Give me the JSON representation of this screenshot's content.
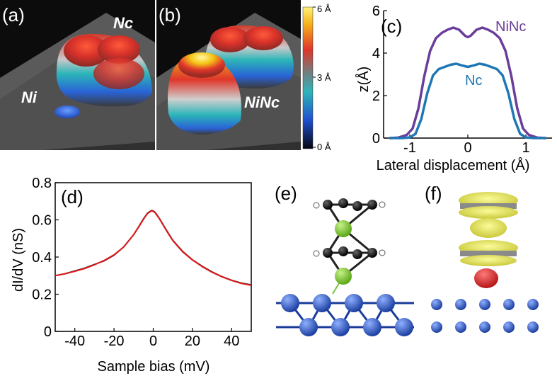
{
  "panels": {
    "a": {
      "label": "(a)",
      "annotations": [
        "Nc",
        "Ni"
      ]
    },
    "b": {
      "label": "(b)",
      "annotations": [
        "NiNc"
      ]
    },
    "colorbar": {
      "ticks": [
        "6 Å",
        "3 Å",
        "0 Å"
      ],
      "values": [
        6,
        3,
        0
      ]
    },
    "e": {
      "label": "(e)"
    },
    "f": {
      "label": "(f)"
    }
  },
  "chart_data": [
    {
      "id": "c",
      "type": "line",
      "panel_label": "(c)",
      "xlabel": "Lateral displacement (Å)",
      "ylabel": "z(Å)",
      "xlim": [
        -1.45,
        1.45
      ],
      "ylim": [
        0,
        6
      ],
      "xticks": [
        -1,
        0,
        1
      ],
      "yticks": [
        0,
        2,
        4,
        6
      ],
      "series": [
        {
          "name": "NiNc",
          "color": "#6a3d9a",
          "x": [
            -1.35,
            -1.2,
            -1.05,
            -0.95,
            -0.85,
            -0.75,
            -0.65,
            -0.55,
            -0.45,
            -0.35,
            -0.25,
            -0.15,
            -0.05,
            0.0,
            0.05,
            0.15,
            0.25,
            0.35,
            0.45,
            0.55,
            0.65,
            0.75,
            0.85,
            0.95,
            1.05,
            1.2,
            1.35
          ],
          "y": [
            0.0,
            0.02,
            0.15,
            0.45,
            1.4,
            2.9,
            4.1,
            4.7,
            4.95,
            5.1,
            5.2,
            5.1,
            4.82,
            4.75,
            4.82,
            5.1,
            5.2,
            5.1,
            4.95,
            4.7,
            4.1,
            2.9,
            1.4,
            0.45,
            0.15,
            0.02,
            0.0
          ]
        },
        {
          "name": "Nc",
          "color": "#1f78b4",
          "x": [
            -1.35,
            -1.15,
            -1.0,
            -0.9,
            -0.8,
            -0.7,
            -0.6,
            -0.5,
            -0.4,
            -0.3,
            -0.2,
            -0.1,
            0.0,
            0.1,
            0.2,
            0.3,
            0.4,
            0.5,
            0.6,
            0.7,
            0.8,
            0.9,
            1.0,
            1.15,
            1.35
          ],
          "y": [
            0.0,
            0.0,
            0.03,
            0.2,
            0.9,
            2.1,
            2.95,
            3.25,
            3.35,
            3.45,
            3.5,
            3.42,
            3.35,
            3.42,
            3.5,
            3.45,
            3.35,
            3.25,
            2.95,
            2.1,
            0.9,
            0.2,
            0.03,
            0.0,
            0.0
          ]
        }
      ]
    },
    {
      "id": "d",
      "type": "line",
      "panel_label": "(d)",
      "xlabel": "Sample bias (mV)",
      "ylabel": "dI/dV (nS)",
      "xlim": [
        -50,
        50
      ],
      "ylim": [
        0,
        0.8
      ],
      "xticks": [
        -40,
        -20,
        0,
        20,
        40
      ],
      "yticks": [
        0,
        0.2,
        0.4,
        0.6,
        0.8
      ],
      "series": [
        {
          "name": "",
          "color": "#111111",
          "x": [
            -50,
            -45,
            -40,
            -35,
            -30,
            -25,
            -20,
            -15,
            -10,
            -7,
            -5,
            -3,
            -1,
            0,
            1,
            3,
            5,
            7,
            10,
            15,
            20,
            25,
            30,
            35,
            40,
            45,
            50
          ],
          "y": [
            0.3,
            0.31,
            0.325,
            0.34,
            0.36,
            0.38,
            0.41,
            0.455,
            0.52,
            0.57,
            0.605,
            0.635,
            0.65,
            0.648,
            0.64,
            0.61,
            0.575,
            0.54,
            0.49,
            0.43,
            0.385,
            0.35,
            0.32,
            0.295,
            0.275,
            0.26,
            0.25
          ]
        },
        {
          "name": "",
          "color": "#e31a1c",
          "x": [
            -50,
            -45,
            -40,
            -35,
            -30,
            -25,
            -20,
            -15,
            -10,
            -7,
            -5,
            -3,
            -1,
            0,
            1,
            3,
            5,
            7,
            10,
            15,
            20,
            25,
            30,
            35,
            40,
            45,
            50
          ],
          "y": [
            0.3,
            0.31,
            0.323,
            0.338,
            0.358,
            0.382,
            0.412,
            0.455,
            0.52,
            0.568,
            0.603,
            0.633,
            0.648,
            0.646,
            0.638,
            0.608,
            0.573,
            0.538,
            0.488,
            0.428,
            0.384,
            0.348,
            0.318,
            0.294,
            0.274,
            0.258,
            0.248
          ]
        }
      ]
    }
  ]
}
